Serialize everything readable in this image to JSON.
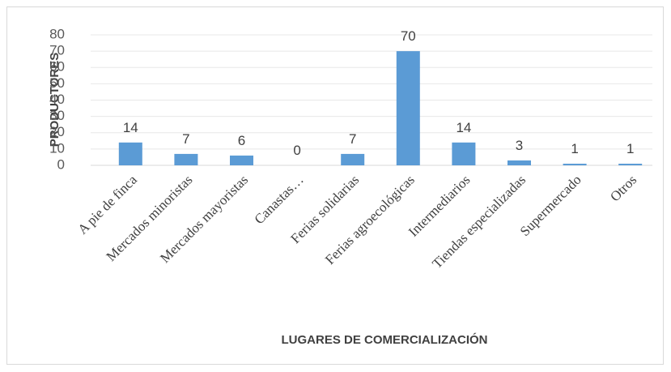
{
  "chart_data": {
    "type": "bar",
    "x_label": "LUGARES DE COMERCIALIZACIÓN",
    "y_label": "PRODUCTORES",
    "categories": [
      "A pie de finca",
      "Mercados minoristas",
      "Mercados mayoristas",
      "Canastas…",
      "Ferias solidarias",
      "Ferias agroecológicas",
      "Intermediarios",
      "Tiendas especializadas",
      "Supermercado",
      "Otros"
    ],
    "values": [
      14,
      7,
      6,
      0,
      7,
      70,
      14,
      3,
      1,
      1
    ],
    "color": "#5b9bd5",
    "ylim": [
      0,
      80
    ],
    "yticks": [
      0,
      10,
      20,
      30,
      40,
      50,
      60,
      70,
      80
    ],
    "grid": true
  }
}
